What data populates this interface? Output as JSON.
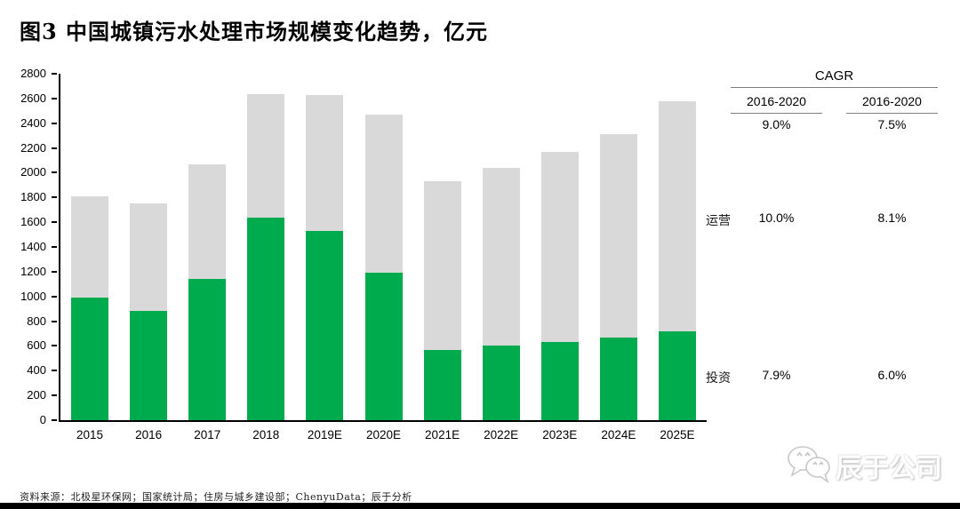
{
  "title": "图3 中国城镇污水处理市场规模变化趋势，亿元",
  "colors": {
    "investment_green": "#00AB4E",
    "operation_gray": "#D9D9D9",
    "axis_black": "#000000",
    "table_rule_gray": "#808080"
  },
  "chart_data": {
    "type": "bar",
    "stacked": true,
    "title": "中国城镇污水处理市场规模变化趋势",
    "unit": "亿元",
    "categories": [
      "2015",
      "2016",
      "2017",
      "2018",
      "2019E",
      "2020E",
      "2021E",
      "2022E",
      "2023E",
      "2024E",
      "2025E"
    ],
    "series": [
      {
        "name": "投资",
        "color": "#00AB4E",
        "position": "bottom",
        "values": [
          990,
          880,
          1140,
          1635,
          1530,
          1190,
          570,
          600,
          630,
          670,
          715
        ]
      },
      {
        "name": "运营",
        "color": "#D9D9D9",
        "position": "top",
        "values": [
          820,
          870,
          925,
          1000,
          1100,
          1280,
          1360,
          1440,
          1540,
          1640,
          1865
        ]
      }
    ],
    "totals": [
      1810,
      1750,
      2065,
      2635,
      2630,
      2470,
      1930,
      2040,
      2170,
      2310,
      2580
    ],
    "ylim": [
      0,
      2800
    ],
    "ytick_step": 200,
    "grid": false,
    "legend_position": "none"
  },
  "cagr_table": {
    "header": "CAGR",
    "columns": [
      "2016-2020",
      "2016-2020"
    ],
    "rows": [
      {
        "label": "",
        "values": [
          "9.0%",
          "7.5%"
        ]
      },
      {
        "label": "运营",
        "values": [
          "10.0%",
          "8.1%"
        ]
      },
      {
        "label": "投资",
        "values": [
          "7.9%",
          "6.0%"
        ]
      }
    ]
  },
  "footer": {
    "source": "资料来源：北极星环保网；国家统计局；住房与城乡建设部；ChenyuData；辰于分析"
  },
  "watermark": {
    "icon": "wechat-chat-bubbles-icon",
    "text": "辰于公司"
  }
}
